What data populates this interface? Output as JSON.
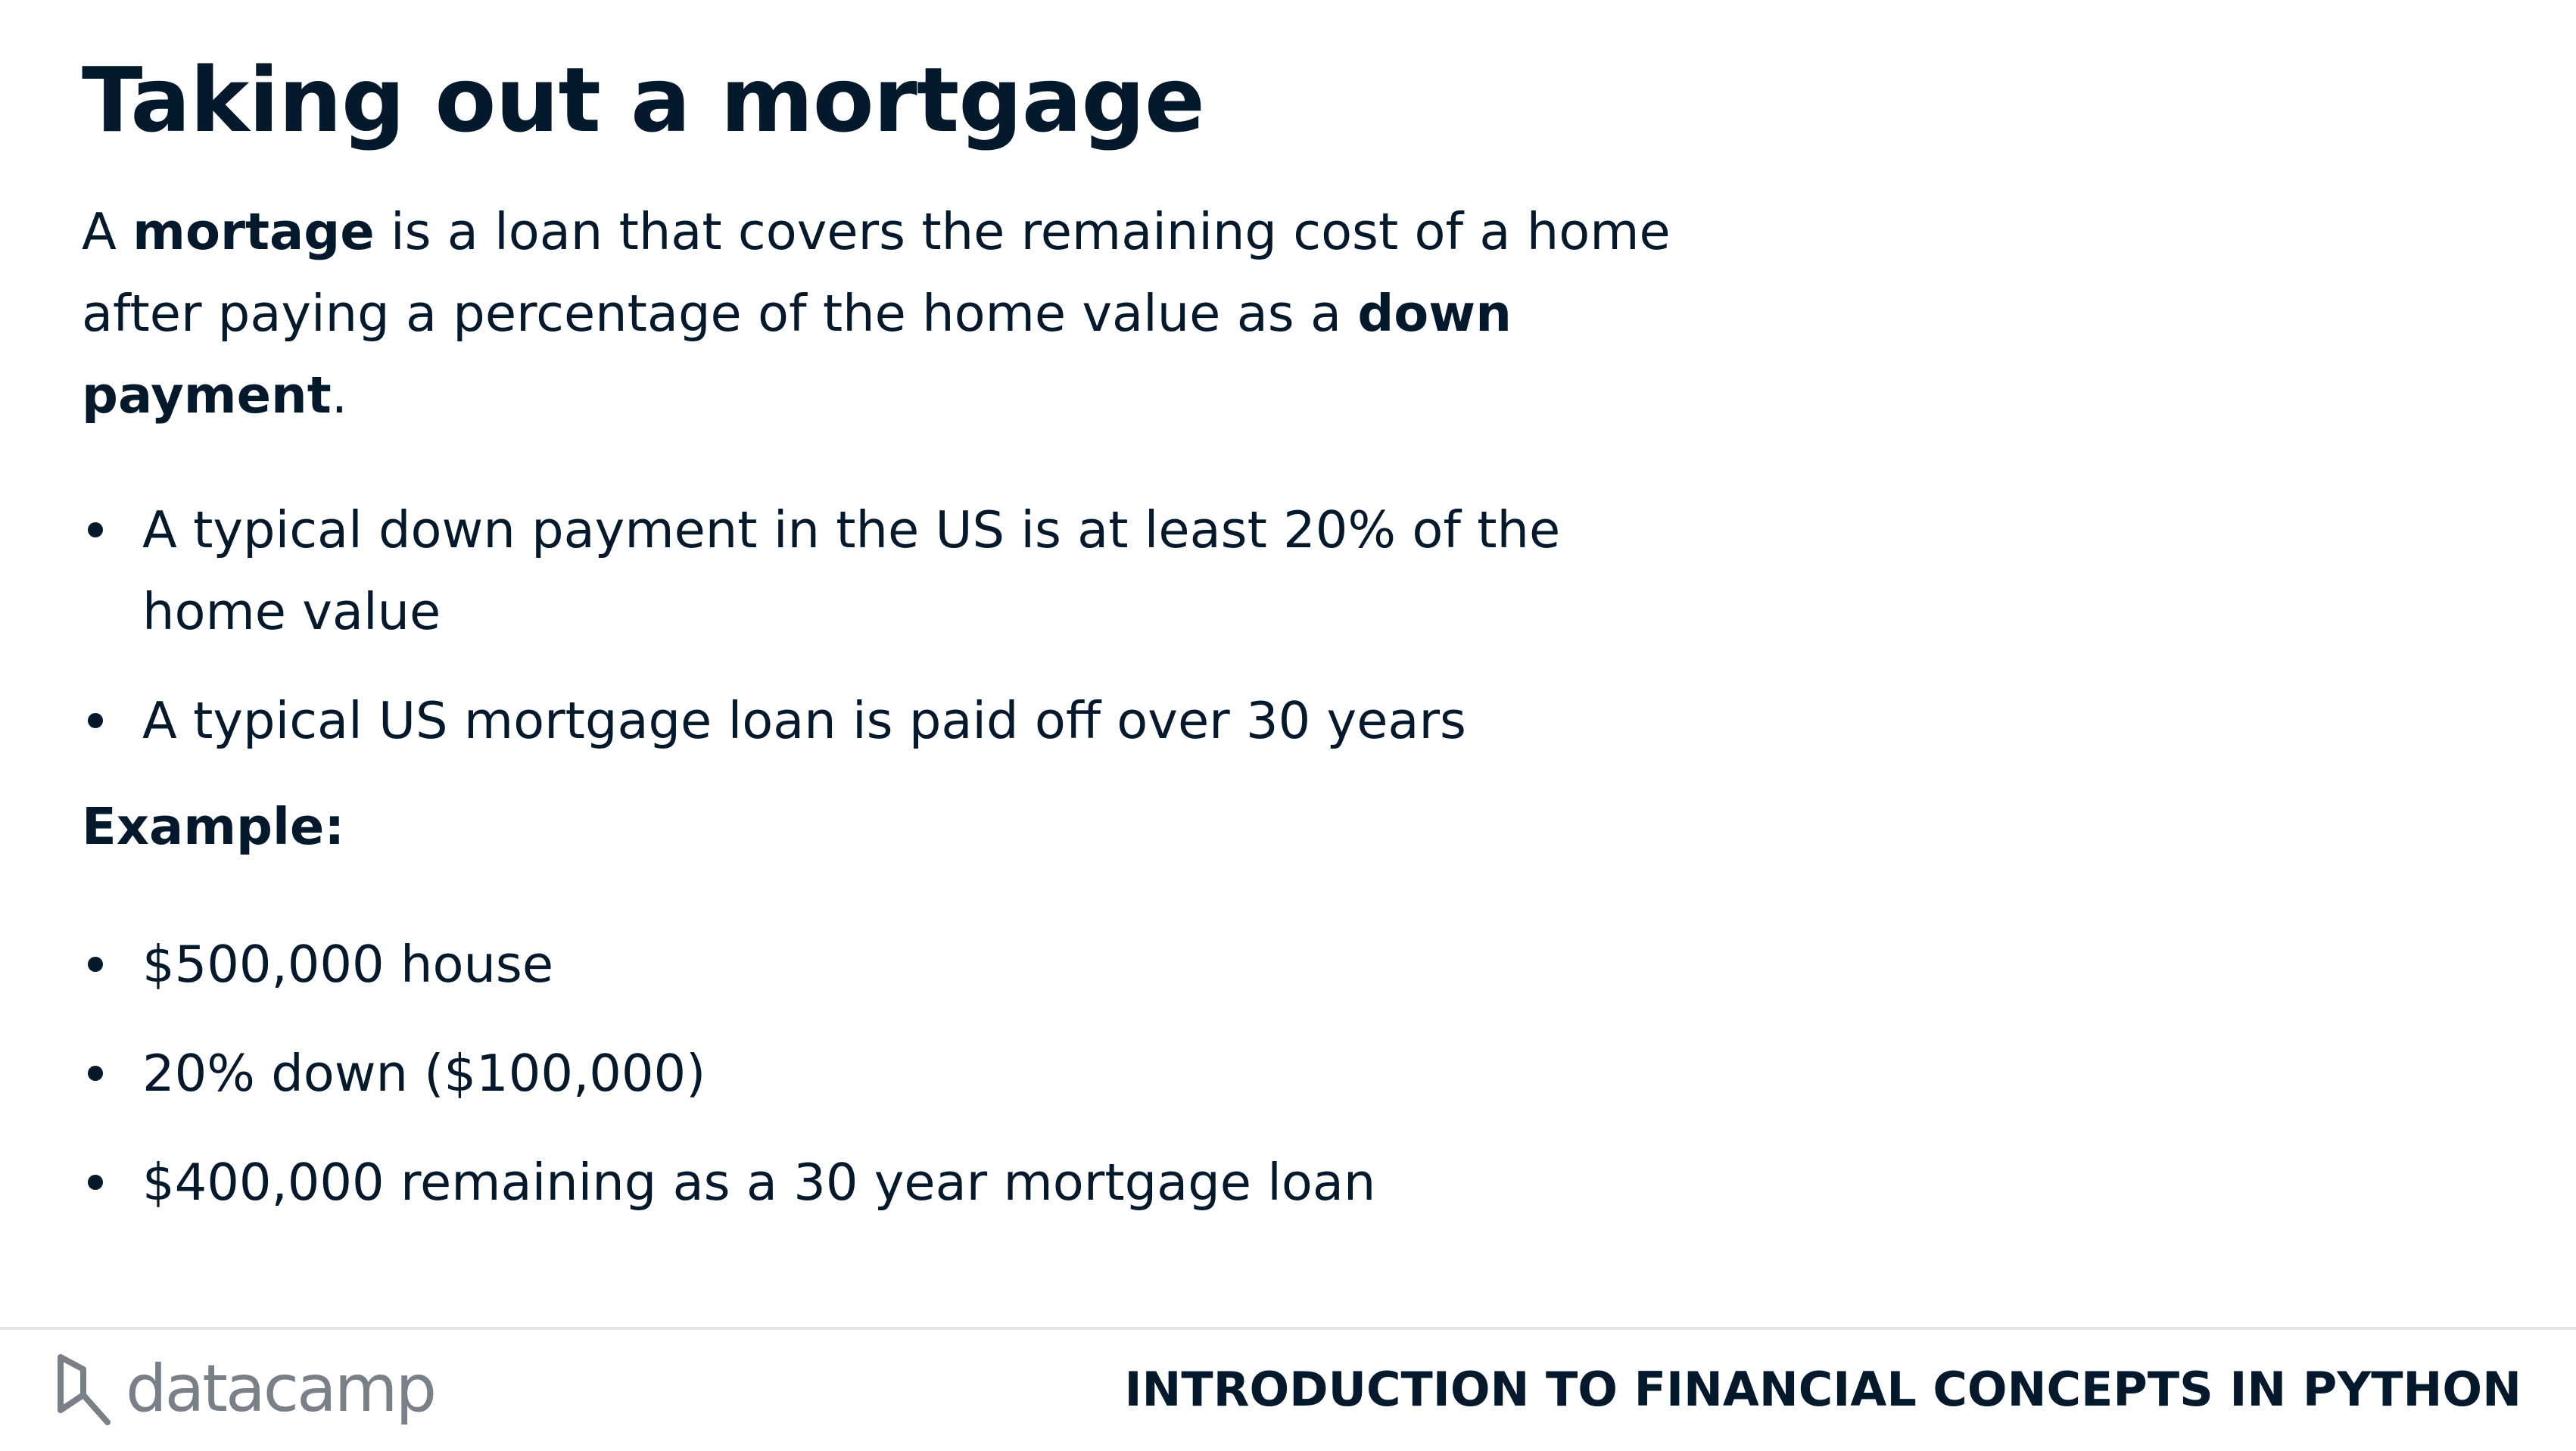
{
  "slide": {
    "title": "Taking out a mortgage",
    "intro": {
      "t1": "A ",
      "term1": "mortage",
      "t2": " is a loan that covers the remaining cost of a home after paying a percentage of the home value as a ",
      "term2": "down payment",
      "t3": "."
    },
    "facts": [
      "A typical down payment in the US is at least 20% of the home value",
      "A typical US mortgage loan is paid off over 30 years"
    ],
    "example_label": "Example:",
    "example_items": [
      "$500,000 house",
      "20% down ($100,000)",
      "$400,000 remaining as a 30 year mortgage loan"
    ]
  },
  "footer": {
    "logo_text": "datacamp",
    "course_title": "INTRODUCTION TO FINANCIAL CONCEPTS IN PYTHON"
  }
}
